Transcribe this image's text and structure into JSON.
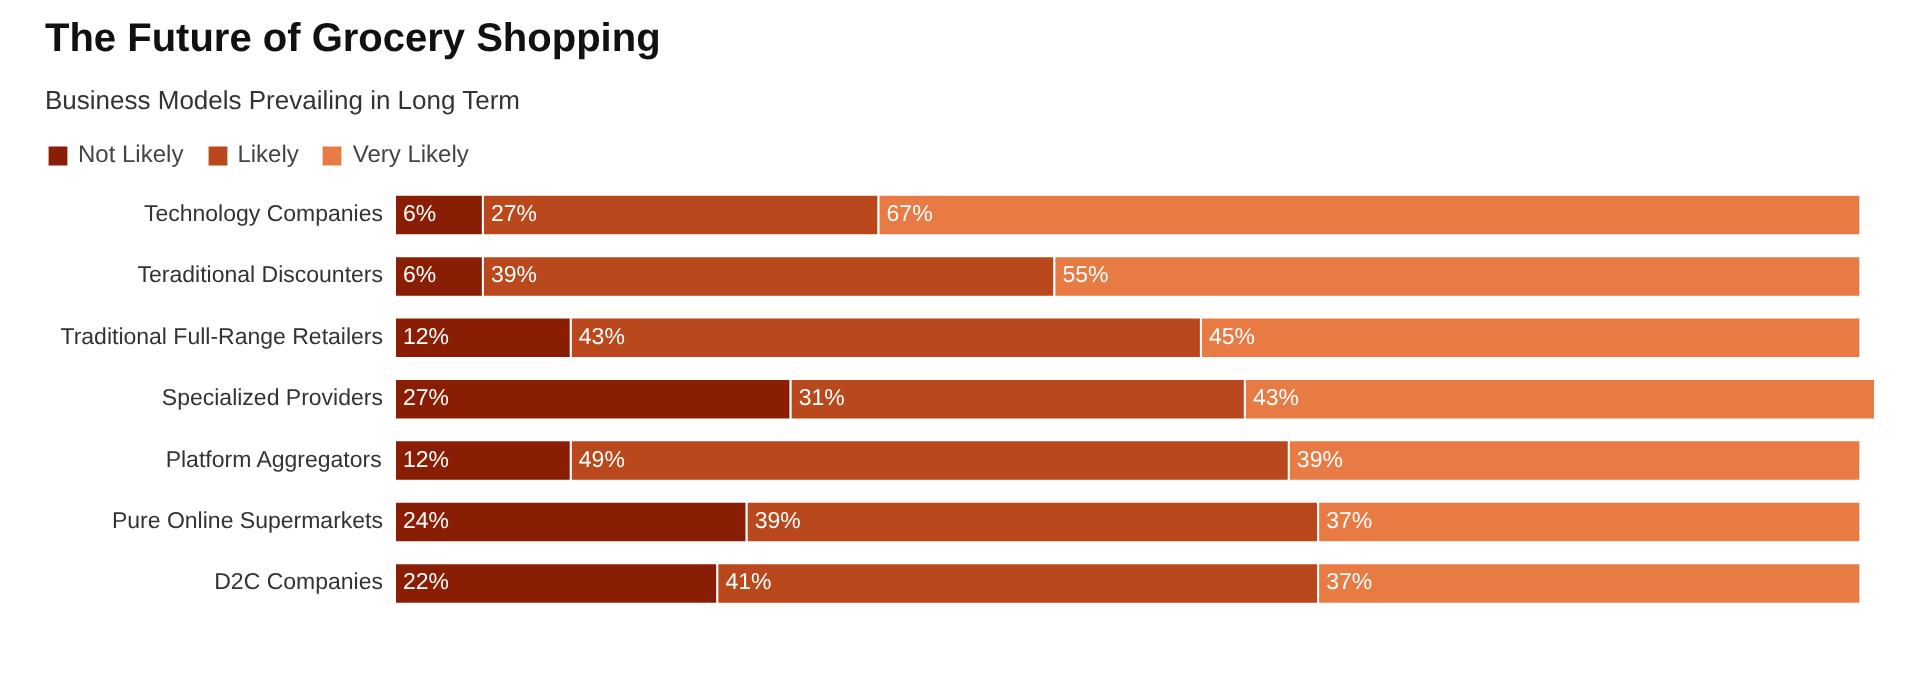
{
  "chart_data": {
    "type": "bar",
    "orientation": "horizontal",
    "stacked": true,
    "title": "The Future of Grocery Shopping",
    "subtitle": "Business Models Prevailing in Long Term",
    "categories": [
      "Technology Companies",
      "Teraditional Discounters",
      "Traditional Full-Range Retailers",
      "Specialized Providers",
      "Platform Aggregators",
      "Pure Online Supermarkets",
      "D2C Companies"
    ],
    "series": [
      {
        "name": "Not Likely",
        "color": "#8a1e04",
        "values": [
          6,
          6,
          12,
          27,
          12,
          24,
          22
        ],
        "value_labels": [
          "6%",
          "6%",
          "12%",
          "27%",
          "12%",
          "24%",
          "22%"
        ]
      },
      {
        "name": "Likely",
        "color": "#b9491c",
        "values": [
          27,
          39,
          43,
          31,
          49,
          39,
          41
        ],
        "value_labels": [
          "27%",
          "39%",
          "43%",
          "31%",
          "49%",
          "39%",
          "41%"
        ]
      },
      {
        "name": "Very Likely",
        "color": "#e87a44",
        "values": [
          67,
          55,
          45,
          43,
          39,
          37,
          37
        ],
        "value_labels": [
          "67%",
          "55%",
          "45%",
          "43%",
          "39%",
          "37%",
          "37%"
        ]
      }
    ],
    "legend": "top left",
    "grid": false
  }
}
